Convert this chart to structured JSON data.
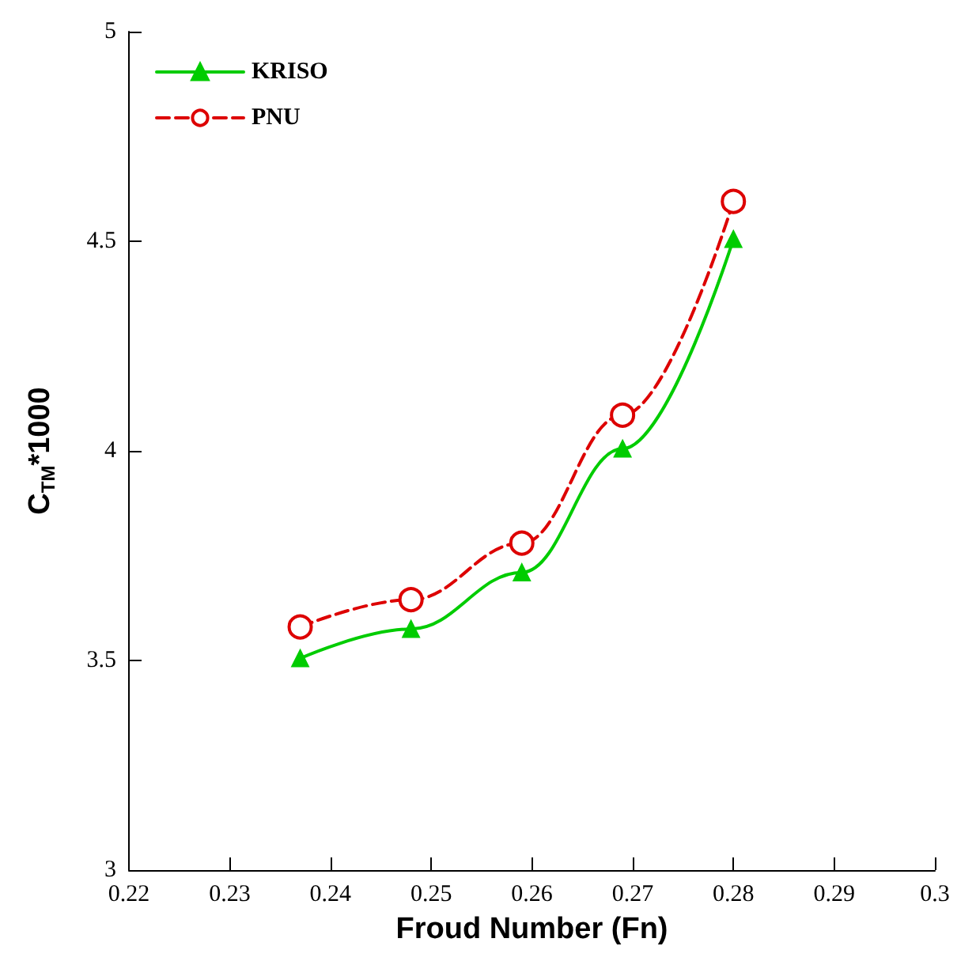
{
  "chart_data": {
    "type": "line",
    "xlabel": "Froud Number (Fn)",
    "ylabel": "C$_{TM}$*1000",
    "x": [
      0.237,
      0.248,
      0.259,
      0.269,
      0.28
    ],
    "series": [
      {
        "name": "KRISO",
        "color": "#00cc00",
        "values": [
          3.505,
          3.575,
          3.71,
          4.005,
          4.505
        ],
        "marker": "triangle",
        "line_style": "solid"
      },
      {
        "name": "PNU",
        "color": "#dd0000",
        "values": [
          3.58,
          3.645,
          3.78,
          4.085,
          4.595
        ],
        "marker": "circle",
        "line_style": "dashed"
      }
    ],
    "xlim": [
      0.22,
      0.3
    ],
    "xticks": [
      0.22,
      0.23,
      0.24,
      0.25,
      0.26,
      0.27,
      0.28,
      0.29,
      0.3
    ],
    "ylim": [
      3,
      5
    ],
    "yticks": [
      3,
      3.5,
      4,
      4.5,
      5
    ],
    "grid": false,
    "legend": "top left"
  }
}
